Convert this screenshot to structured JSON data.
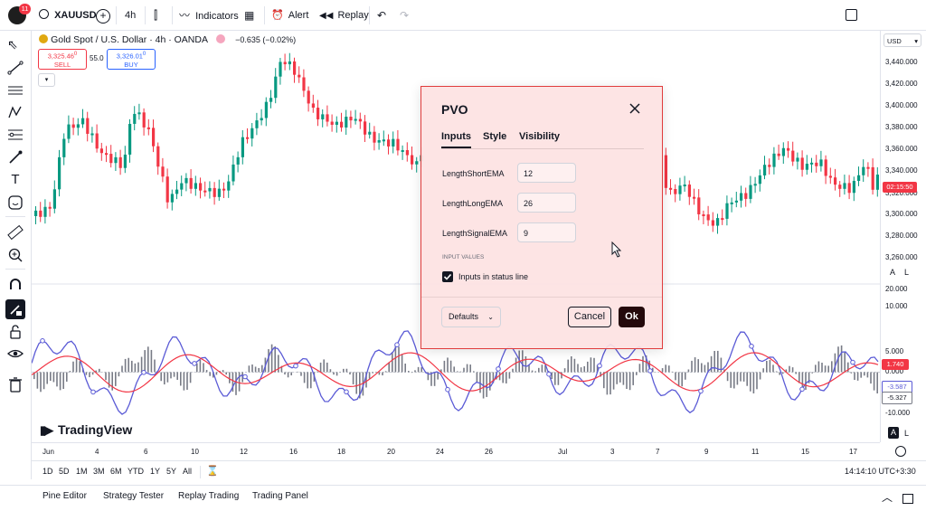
{
  "toolbar": {
    "notif_count": "11",
    "symbol": "XAUUSD",
    "interval": "4h",
    "indicators": "Indicators",
    "alert": "Alert",
    "replay": "Replay"
  },
  "legend": {
    "title": "Gold Spot / U.S. Dollar · 4h · OANDA",
    "change": "−0.635 (−0.02%)",
    "sell_price": "3,325.46",
    "sell_sup": "0",
    "sell_label": "SELL",
    "spread": "55.0",
    "buy_price": "3,326.01",
    "buy_sup": "0",
    "buy_label": "BUY"
  },
  "currency": "USD",
  "price_axis": [
    "3,440.000",
    "3,420.000",
    "3,400.000",
    "3,380.000",
    "3,360.000",
    "3,340.000",
    "3,320.000",
    "3,300.000",
    "3,280.000",
    "3,260.000"
  ],
  "countdown": "02:15:50",
  "osc_axis": [
    "20.000",
    "10.000",
    "5.000",
    "0.000",
    "-10.000"
  ],
  "osc_badges": {
    "red": "1.740",
    "blue": "-3.587",
    "gray": "-5.327"
  },
  "axis_toggle": {
    "a": "A",
    "l": "L"
  },
  "time_axis": [
    "Jun",
    "4",
    "6",
    "10",
    "12",
    "16",
    "18",
    "20",
    "24",
    "26",
    "Jul",
    "3",
    "7",
    "9",
    "11",
    "15",
    "17"
  ],
  "ranges": [
    "1D",
    "5D",
    "1M",
    "3M",
    "6M",
    "YTD",
    "1Y",
    "5Y",
    "All"
  ],
  "clock": "14:14:10 UTC+3:30",
  "bottom_tabs": [
    "Pine Editor",
    "Strategy Tester",
    "Replay Trading",
    "Trading Panel"
  ],
  "watermark": "TradingView",
  "dialog": {
    "title": "PVO",
    "tabs": [
      "Inputs",
      "Style",
      "Visibility"
    ],
    "fields": [
      {
        "label": "LengthShortEMA",
        "value": "12"
      },
      {
        "label": "LengthLongEMA",
        "value": "26"
      },
      {
        "label": "LengthSignalEMA",
        "value": "9"
      }
    ],
    "section": "INPUT VALUES",
    "checkbox_label": "Inputs in status line",
    "checkbox_checked": true,
    "defaults": "Defaults",
    "cancel": "Cancel",
    "ok": "Ok"
  },
  "colors": {
    "up": "#089981",
    "down": "#f23645",
    "signal": "#f23645",
    "pvo": "#5b5bd6",
    "hist": "#787b86",
    "dialog_border": "#e03c3c"
  }
}
